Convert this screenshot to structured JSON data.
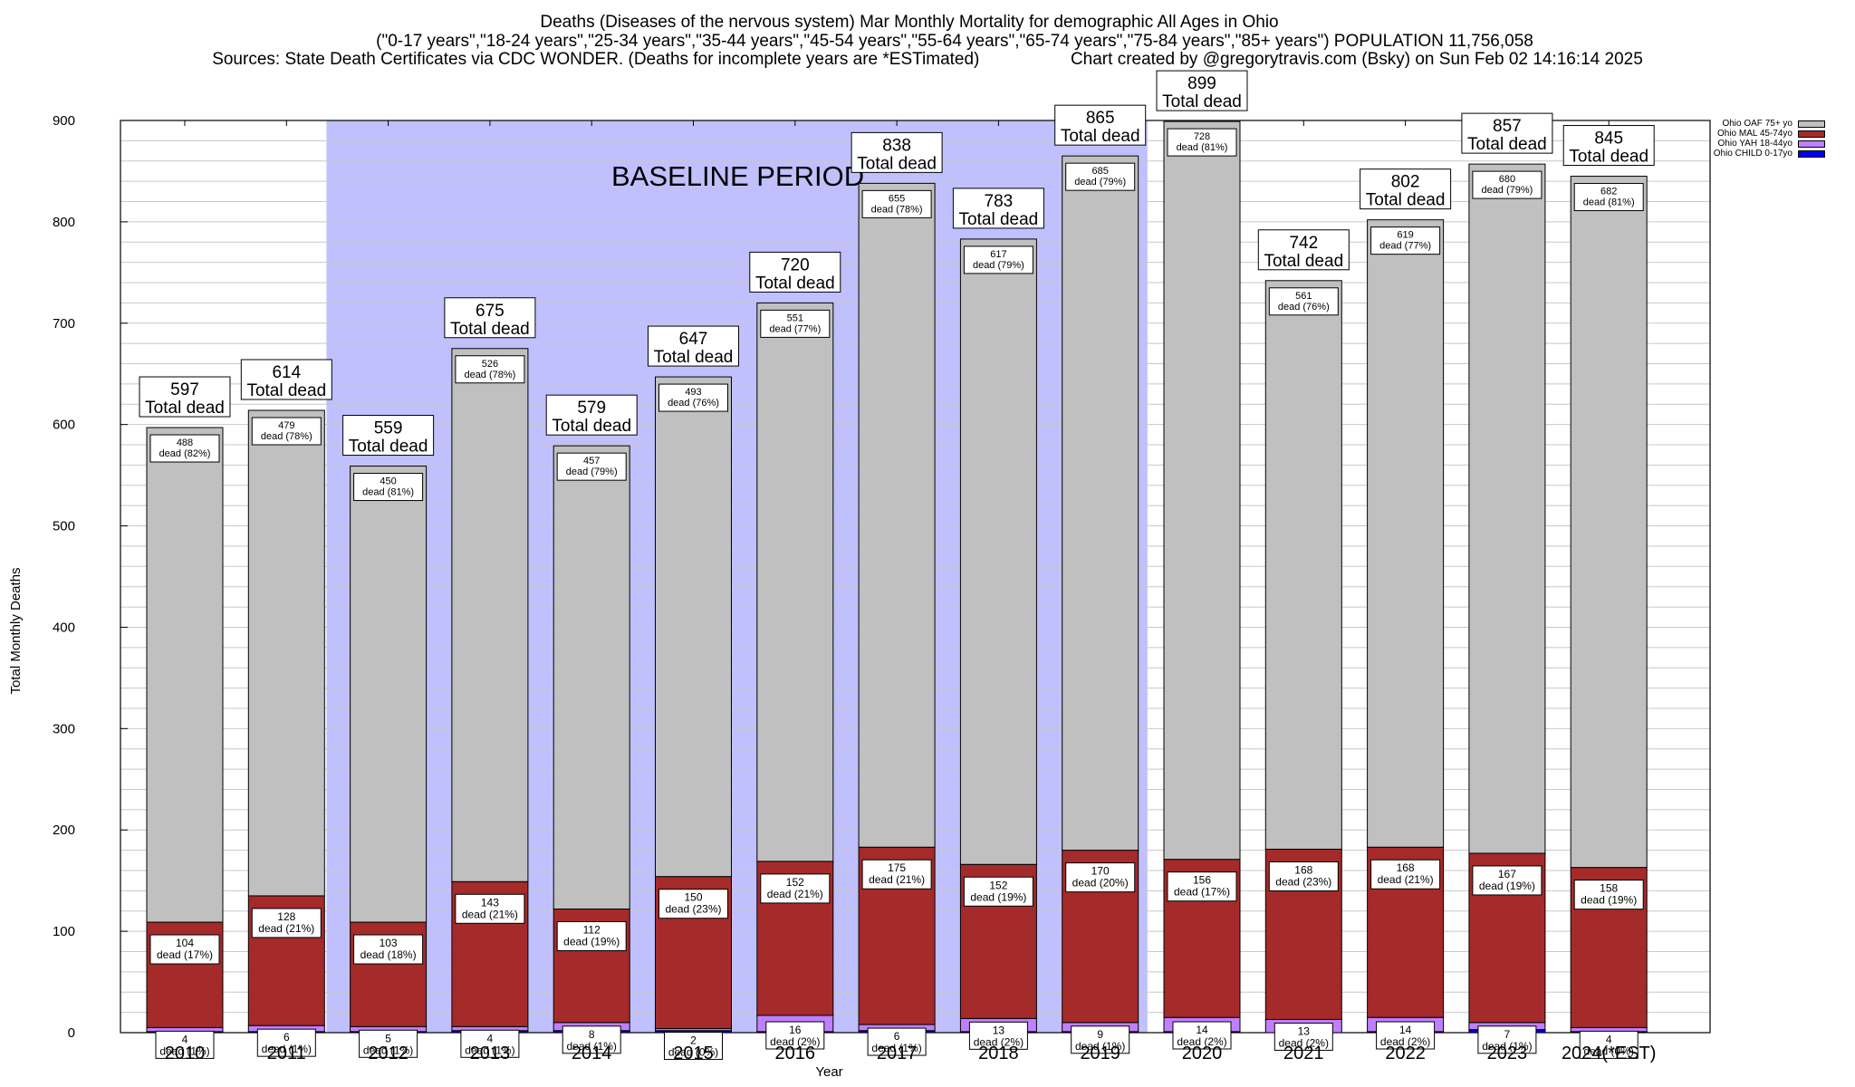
{
  "header": {
    "line1": "Deaths (Diseases of the nervous system) Mar Monthly Mortality for demographic All Ages in Ohio",
    "line2": "(\"0-17 years\",\"18-24 years\",\"25-34 years\",\"35-44 years\",\"45-54 years\",\"55-64 years\",\"65-74 years\",\"75-84 years\",\"85+ years\") POPULATION 11,756,058",
    "line3_left": "Sources: State Death Certificates via CDC WONDER. (Deaths for incomplete years are *ESTimated)",
    "line3_right": "Chart created by @gregorytravis.com (Bsky) on Sun Feb 02 14:16:14 2025"
  },
  "chart_data": {
    "type": "bar",
    "stacked": true,
    "title": "Deaths (Diseases of the nervous system) Mar Monthly Mortality for demographic All Ages in Ohio",
    "xlabel": "Year",
    "ylabel": "Total Monthly Deaths",
    "ylim": [
      0,
      900
    ],
    "yticks": [
      0,
      100,
      200,
      300,
      400,
      500,
      600,
      700,
      800,
      900
    ],
    "minor_grid_step": 20,
    "grid": true,
    "legend_position": "top-right",
    "annotation": "BASELINE PERIOD",
    "baseline_period": [
      "2012",
      "2019"
    ],
    "total_label_suffix": "Total dead",
    "segment_label_prefix": "dead",
    "categories": [
      "2010",
      "2011",
      "2012",
      "2013",
      "2014",
      "2015",
      "2016",
      "2017",
      "2018",
      "2019",
      "2020",
      "2021",
      "2022",
      "2023",
      "2024(*EST)"
    ],
    "totals": [
      597,
      614,
      559,
      675,
      579,
      647,
      720,
      838,
      783,
      865,
      899,
      742,
      802,
      857,
      845
    ],
    "series": [
      {
        "name": "Ohio CHILD 0-17yo",
        "color": "#0000ee",
        "values": [
          1,
          1,
          1,
          2,
          2,
          2,
          1,
          2,
          1,
          1,
          1,
          0,
          1,
          3,
          1
        ],
        "labeled": false
      },
      {
        "name": "Ohio YAH 18-44yo",
        "color": "#bf80ff",
        "values": [
          4,
          6,
          5,
          4,
          8,
          2,
          16,
          6,
          13,
          9,
          14,
          13,
          14,
          7,
          4
        ],
        "pct": [
          "1%",
          "1%",
          "1%",
          "1%",
          "1%",
          "0%",
          "2%",
          "1%",
          "2%",
          "1%",
          "2%",
          "2%",
          "2%",
          "1%",
          "0%"
        ]
      },
      {
        "name": "Ohio MAL 45-74yo",
        "color": "#a52a2a",
        "values": [
          104,
          128,
          103,
          143,
          112,
          150,
          152,
          175,
          152,
          170,
          156,
          168,
          168,
          167,
          158
        ],
        "pct": [
          "17%",
          "21%",
          "18%",
          "21%",
          "19%",
          "23%",
          "21%",
          "21%",
          "19%",
          "20%",
          "17%",
          "23%",
          "21%",
          "19%",
          "19%"
        ]
      },
      {
        "name": "Ohio OAF 75+ yo",
        "color": "#c0c0c0",
        "values": [
          488,
          479,
          450,
          526,
          457,
          493,
          551,
          655,
          617,
          685,
          728,
          561,
          619,
          680,
          682
        ],
        "pct": [
          "82%",
          "78%",
          "81%",
          "78%",
          "79%",
          "76%",
          "77%",
          "78%",
          "79%",
          "79%",
          "81%",
          "76%",
          "77%",
          "79%",
          "81%"
        ]
      }
    ],
    "colors": {
      "baseline_shade": "#c0c0ff",
      "grid": "#c8c8c8",
      "axis": "#000000"
    }
  }
}
